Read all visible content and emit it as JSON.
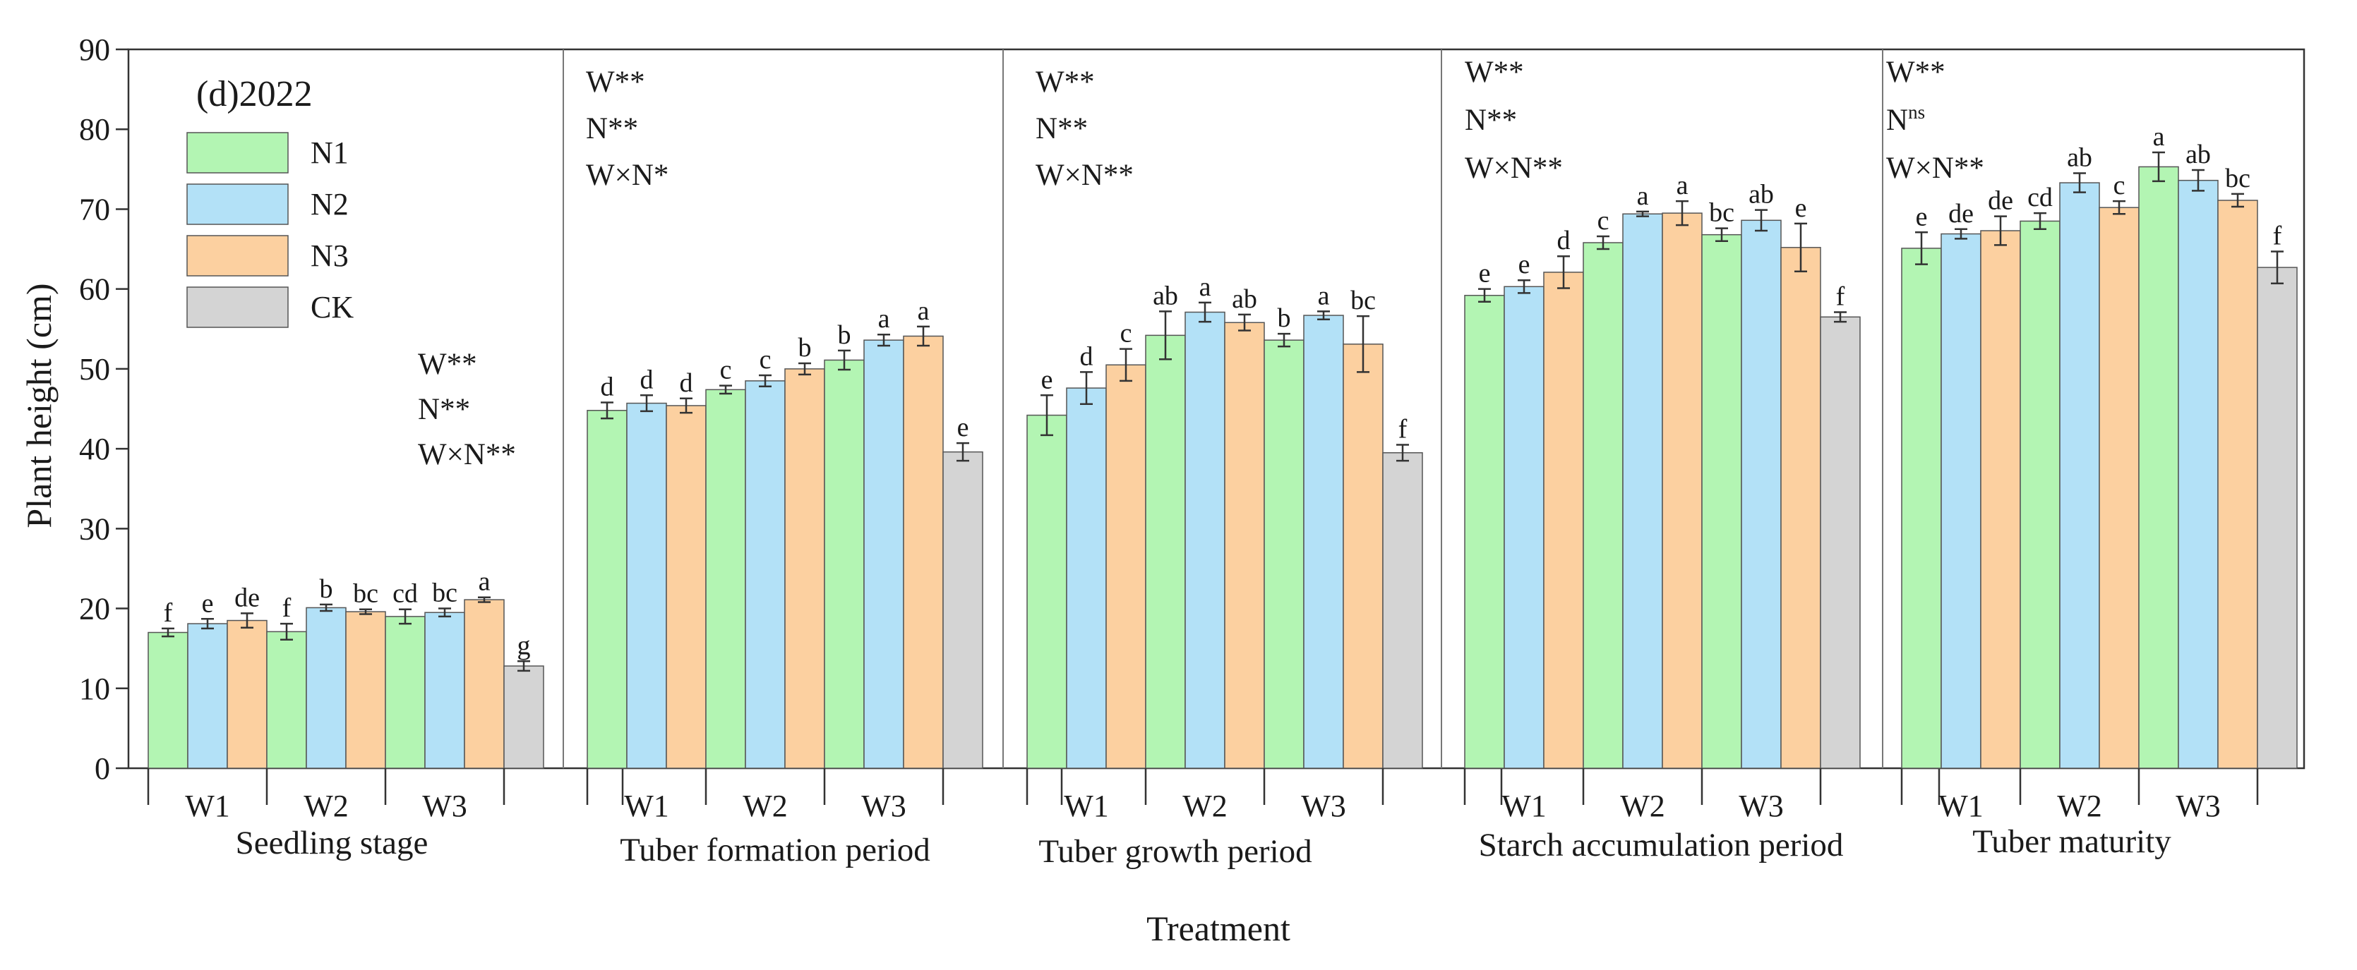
{
  "chart_data": {
    "type": "bar",
    "title": "(d)2022",
    "xlabel": "Treatment",
    "ylabel": "Plant height (cm)",
    "ylim": [
      0,
      90
    ],
    "yticks": [
      0,
      10,
      20,
      30,
      40,
      50,
      60,
      70,
      80,
      90
    ],
    "legend": [
      {
        "name": "N1",
        "color": "#b3f5b3"
      },
      {
        "name": "N2",
        "color": "#b3e1f7"
      },
      {
        "name": "N3",
        "color": "#fcd0a0"
      },
      {
        "name": "CK",
        "color": "#d4d4d4"
      }
    ],
    "legend_position": "top-left",
    "groups": [
      "W1",
      "W2",
      "W3"
    ],
    "panels": [
      {
        "stage": "Seedling stage",
        "stats": [
          {
            "factor": "W",
            "sig": "**"
          },
          {
            "factor": "N",
            "sig": "**"
          },
          {
            "factor": "W×N",
            "sig": "**"
          }
        ],
        "bars": [
          {
            "group": "W1",
            "series": "N1",
            "value": 17.0,
            "error": 0.5,
            "letter": "f"
          },
          {
            "group": "W1",
            "series": "N2",
            "value": 18.1,
            "error": 0.6,
            "letter": "e"
          },
          {
            "group": "W1",
            "series": "N3",
            "value": 18.5,
            "error": 0.9,
            "letter": "de"
          },
          {
            "group": "W2",
            "series": "N1",
            "value": 17.1,
            "error": 1.0,
            "letter": "f"
          },
          {
            "group": "W2",
            "series": "N2",
            "value": 20.1,
            "error": 0.4,
            "letter": "b"
          },
          {
            "group": "W2",
            "series": "N3",
            "value": 19.6,
            "error": 0.3,
            "letter": "bc"
          },
          {
            "group": "W3",
            "series": "N1",
            "value": 19.0,
            "error": 0.9,
            "letter": "cd"
          },
          {
            "group": "W3",
            "series": "N2",
            "value": 19.5,
            "error": 0.5,
            "letter": "bc"
          },
          {
            "group": "W3",
            "series": "N3",
            "value": 21.1,
            "error": 0.3,
            "letter": "a"
          },
          {
            "group": "CK",
            "series": "CK",
            "value": 12.8,
            "error": 0.6,
            "letter": "g"
          }
        ]
      },
      {
        "stage": "Tuber formation period",
        "stats": [
          {
            "factor": "W",
            "sig": "**"
          },
          {
            "factor": "N",
            "sig": "**"
          },
          {
            "factor": "W×N",
            "sig": "*"
          }
        ],
        "bars": [
          {
            "group": "W1",
            "series": "N1",
            "value": 44.8,
            "error": 1.0,
            "letter": "d"
          },
          {
            "group": "W1",
            "series": "N2",
            "value": 45.7,
            "error": 1.0,
            "letter": "d"
          },
          {
            "group": "W1",
            "series": "N3",
            "value": 45.4,
            "error": 0.9,
            "letter": "d"
          },
          {
            "group": "W2",
            "series": "N1",
            "value": 47.4,
            "error": 0.5,
            "letter": "c"
          },
          {
            "group": "W2",
            "series": "N2",
            "value": 48.5,
            "error": 0.7,
            "letter": "c"
          },
          {
            "group": "W2",
            "series": "N3",
            "value": 50.0,
            "error": 0.7,
            "letter": "b"
          },
          {
            "group": "W3",
            "series": "N1",
            "value": 51.1,
            "error": 1.2,
            "letter": "b"
          },
          {
            "group": "W3",
            "series": "N2",
            "value": 53.6,
            "error": 0.7,
            "letter": "a"
          },
          {
            "group": "W3",
            "series": "N3",
            "value": 54.1,
            "error": 1.2,
            "letter": "a"
          },
          {
            "group": "CK",
            "series": "CK",
            "value": 39.6,
            "error": 1.1,
            "letter": "e"
          }
        ]
      },
      {
        "stage": "Tuber growth period",
        "stats": [
          {
            "factor": "W",
            "sig": "**"
          },
          {
            "factor": "N",
            "sig": "**"
          },
          {
            "factor": "W×N",
            "sig": "**"
          }
        ],
        "bars": [
          {
            "group": "W1",
            "series": "N1",
            "value": 44.2,
            "error": 2.5,
            "letter": "e"
          },
          {
            "group": "W1",
            "series": "N2",
            "value": 47.6,
            "error": 2.0,
            "letter": "d"
          },
          {
            "group": "W1",
            "series": "N3",
            "value": 50.5,
            "error": 2.0,
            "letter": "c"
          },
          {
            "group": "W2",
            "series": "N1",
            "value": 54.2,
            "error": 3.0,
            "letter": "ab"
          },
          {
            "group": "W2",
            "series": "N2",
            "value": 57.1,
            "error": 1.2,
            "letter": "a"
          },
          {
            "group": "W2",
            "series": "N3",
            "value": 55.8,
            "error": 1.0,
            "letter": "ab"
          },
          {
            "group": "W3",
            "series": "N1",
            "value": 53.6,
            "error": 0.8,
            "letter": "b"
          },
          {
            "group": "W3",
            "series": "N2",
            "value": 56.7,
            "error": 0.5,
            "letter": "a"
          },
          {
            "group": "W3",
            "series": "N3",
            "value": 53.1,
            "error": 3.5,
            "letter": "bc"
          },
          {
            "group": "CK",
            "series": "CK",
            "value": 39.5,
            "error": 1.0,
            "letter": "f"
          }
        ]
      },
      {
        "stage": "Starch accumulation period",
        "stats": [
          {
            "factor": "W",
            "sig": "**"
          },
          {
            "factor": "N",
            "sig": "**"
          },
          {
            "factor": "W×N",
            "sig": "**"
          }
        ],
        "bars": [
          {
            "group": "W1",
            "series": "N1",
            "value": 59.2,
            "error": 0.8,
            "letter": "e"
          },
          {
            "group": "W1",
            "series": "N2",
            "value": 60.3,
            "error": 0.8,
            "letter": "e"
          },
          {
            "group": "W1",
            "series": "N3",
            "value": 62.1,
            "error": 2.0,
            "letter": "d"
          },
          {
            "group": "W2",
            "series": "N1",
            "value": 65.8,
            "error": 0.8,
            "letter": "c"
          },
          {
            "group": "W2",
            "series": "N2",
            "value": 69.4,
            "error": 0.3,
            "letter": "a"
          },
          {
            "group": "W2",
            "series": "N3",
            "value": 69.5,
            "error": 1.5,
            "letter": "a"
          },
          {
            "group": "W3",
            "series": "N1",
            "value": 66.8,
            "error": 0.8,
            "letter": "bc"
          },
          {
            "group": "W3",
            "series": "N2",
            "value": 68.6,
            "error": 1.3,
            "letter": "ab"
          },
          {
            "group": "W3",
            "series": "N3",
            "value": 65.2,
            "error": 3.0,
            "letter": "e"
          },
          {
            "group": "CK",
            "series": "CK",
            "value": 56.5,
            "error": 0.6,
            "letter": "f"
          }
        ]
      },
      {
        "stage": "Tuber maturity",
        "stats": [
          {
            "factor": "W",
            "sig": "**"
          },
          {
            "factor": "N",
            "sig": "ns"
          },
          {
            "factor": "W×N",
            "sig": "**"
          }
        ],
        "bars": [
          {
            "group": "W1",
            "series": "N1",
            "value": 65.1,
            "error": 2.0,
            "letter": "e"
          },
          {
            "group": "W1",
            "series": "N2",
            "value": 66.9,
            "error": 0.6,
            "letter": "de"
          },
          {
            "group": "W1",
            "series": "N3",
            "value": 67.3,
            "error": 1.8,
            "letter": "de"
          },
          {
            "group": "W2",
            "series": "N1",
            "value": 68.5,
            "error": 1.0,
            "letter": "cd"
          },
          {
            "group": "W2",
            "series": "N2",
            "value": 73.3,
            "error": 1.2,
            "letter": "ab"
          },
          {
            "group": "W2",
            "series": "N3",
            "value": 70.2,
            "error": 0.8,
            "letter": "c"
          },
          {
            "group": "W3",
            "series": "N1",
            "value": 75.3,
            "error": 1.8,
            "letter": "a"
          },
          {
            "group": "W3",
            "series": "N2",
            "value": 73.6,
            "error": 1.3,
            "letter": "ab"
          },
          {
            "group": "W3",
            "series": "N3",
            "value": 71.1,
            "error": 0.8,
            "letter": "bc"
          },
          {
            "group": "CK",
            "series": "CK",
            "value": 62.7,
            "error": 2.0,
            "letter": "f"
          }
        ]
      }
    ]
  }
}
